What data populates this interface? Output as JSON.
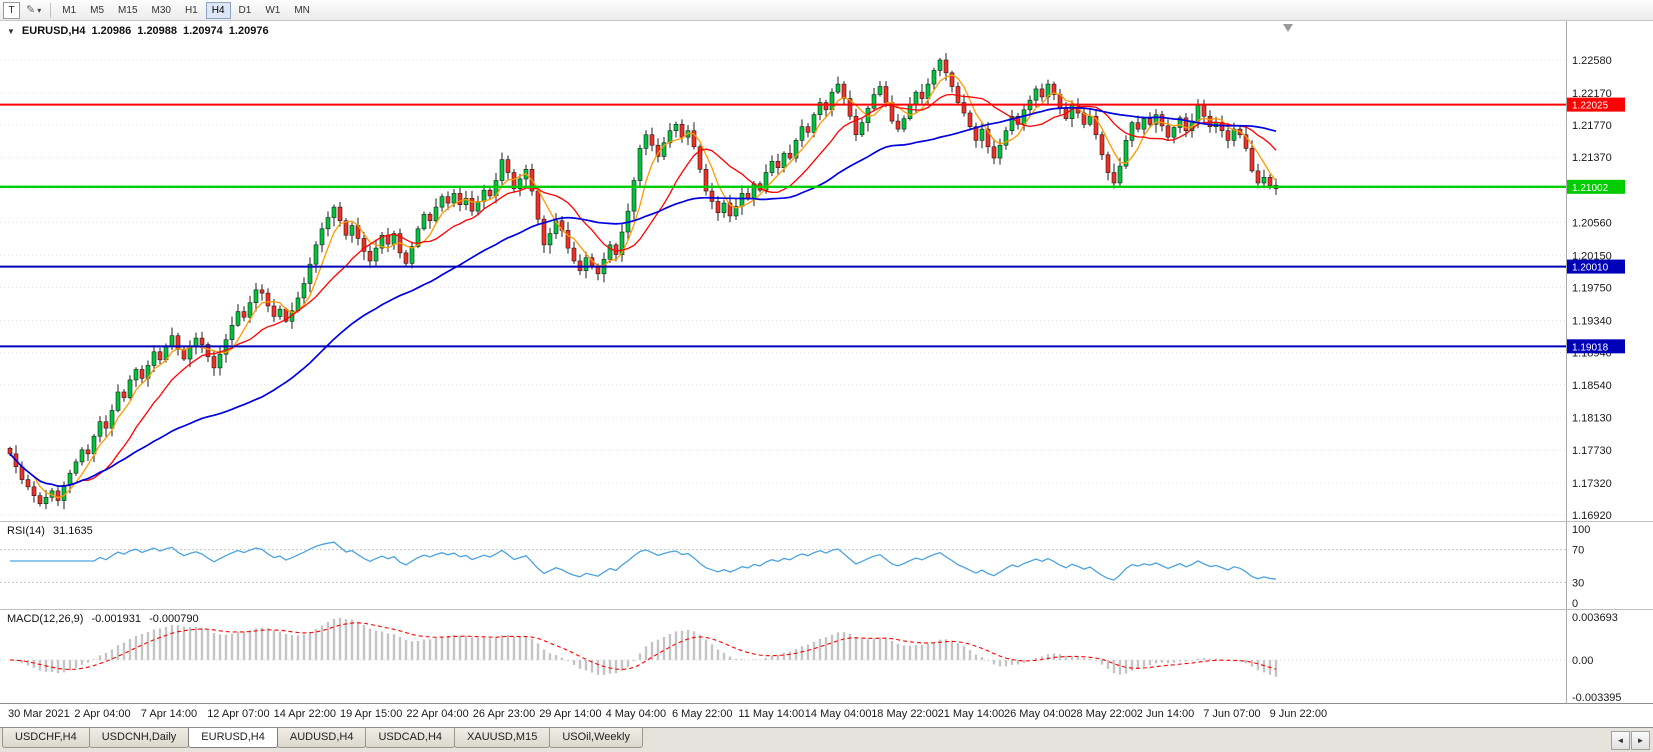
{
  "toolbar": {
    "t_label": "T",
    "tools_glyph": "✎",
    "caret_glyph": "▾",
    "timeframes": [
      "M1",
      "M5",
      "M15",
      "M30",
      "H1",
      "H4",
      "D1",
      "W1",
      "MN"
    ],
    "active_timeframe": "H4"
  },
  "chart": {
    "one_click_glyph": "▼",
    "symbol_label": "EURUSD,H4",
    "open": "1.20986",
    "high": "1.20988",
    "low": "1.20974",
    "close": "1.20976"
  },
  "tabs": {
    "items": [
      "USDCHF,H4",
      "USDCNH,Daily",
      "EURUSD,H4",
      "AUDUSD,H4",
      "USDCAD,H4",
      "XAUUSD,M15",
      "USOil,Weekly"
    ],
    "active": "EURUSD,H4",
    "scroll_left_glyph": "◄",
    "scroll_right_glyph": "►"
  },
  "chart_data": {
    "type": "candlestick",
    "symbol": "EURUSD",
    "period": "H4",
    "ylim": [
      1.1687,
      1.2304
    ],
    "price_ticks": [
      "1.22580",
      "1.22170",
      "1.21770",
      "1.21370",
      "1.20970",
      "1.20560",
      "1.20150",
      "1.19750",
      "1.19340",
      "1.18940",
      "1.18540",
      "1.18130",
      "1.17730",
      "1.17320",
      "1.16920"
    ],
    "time_labels": [
      "30 Mar 2021",
      "2 Apr 04:00",
      "7 Apr 14:00",
      "12 Apr 07:00",
      "14 Apr 22:00",
      "19 Apr 15:00",
      "22 Apr 04:00",
      "26 Apr 23:00",
      "29 Apr 14:00",
      "4 May 04:00",
      "6 May 22:00",
      "11 May 14:00",
      "14 May 04:00",
      "18 May 22:00",
      "21 May 14:00",
      "26 May 04:00",
      "28 May 22:00",
      "2 Jun 14:00",
      "7 Jun 07:00",
      "9 Jun 22:00"
    ],
    "first_open": 1.1775,
    "closes": [
      1.1768,
      1.1752,
      1.1736,
      1.1727,
      1.1716,
      1.1706,
      1.1714,
      1.1722,
      1.171,
      1.1729,
      1.1744,
      1.1758,
      1.1773,
      1.1768,
      1.179,
      1.1808,
      1.18,
      1.1822,
      1.1845,
      1.1838,
      1.186,
      1.1873,
      1.1862,
      1.1878,
      1.1895,
      1.1885,
      1.1902,
      1.1915,
      1.1898,
      1.1886,
      1.1901,
      1.1912,
      1.1904,
      1.1889,
      1.1875,
      1.1892,
      1.191,
      1.1928,
      1.1945,
      1.1938,
      1.1956,
      1.1972,
      1.1968,
      1.1952,
      1.1939,
      1.1948,
      1.1933,
      1.1946,
      1.1962,
      1.198,
      1.2004,
      1.2028,
      1.2048,
      1.2062,
      1.2075,
      1.2058,
      1.204,
      1.2052,
      1.2036,
      1.202,
      1.2008,
      1.2024,
      1.204,
      1.2029,
      1.2042,
      1.2018,
      1.2005,
      1.2026,
      1.2048,
      1.2066,
      1.2058,
      1.2075,
      1.2088,
      1.208,
      1.2092,
      1.2078,
      1.2086,
      1.207,
      1.2082,
      1.2096,
      1.2089,
      1.2108,
      1.2134,
      1.2118,
      1.2098,
      1.211,
      1.2122,
      1.2095,
      1.206,
      1.2028,
      1.2042,
      1.2058,
      1.2046,
      1.2024,
      1.2008,
      1.1996,
      1.2012,
      1.2002,
      1.1992,
      1.201,
      1.2028,
      1.2016,
      1.2044,
      1.207,
      1.2108,
      1.2148,
      1.2165,
      1.2152,
      1.2138,
      1.2155,
      1.217,
      1.2178,
      1.2162,
      1.217,
      1.215,
      1.2122,
      1.2095,
      1.2082,
      1.2068,
      1.208,
      1.2064,
      1.2076,
      1.2092,
      1.2085,
      1.2104,
      1.2096,
      1.2118,
      1.2132,
      1.2124,
      1.2142,
      1.2136,
      1.2158,
      1.2175,
      1.2168,
      1.219,
      1.2205,
      1.2196,
      1.2218,
      1.2228,
      1.221,
      1.2188,
      1.2165,
      1.218,
      1.2198,
      1.2215,
      1.2225,
      1.2205,
      1.2182,
      1.2172,
      1.2185,
      1.2202,
      1.2218,
      1.221,
      1.2228,
      1.2245,
      1.2258,
      1.2242,
      1.2225,
      1.2205,
      1.2192,
      1.2175,
      1.2158,
      1.2172,
      1.215,
      1.2136,
      1.2152,
      1.217,
      1.2188,
      1.2178,
      1.2196,
      1.2208,
      1.2222,
      1.2212,
      1.2228,
      1.2215,
      1.2198,
      1.2185,
      1.2202,
      1.2192,
      1.2178,
      1.2188,
      1.2165,
      1.214,
      1.2118,
      1.2105,
      1.2126,
      1.2158,
      1.218,
      1.2172,
      1.2185,
      1.2178,
      1.219,
      1.2176,
      1.2162,
      1.2174,
      1.2186,
      1.217,
      1.2182,
      1.2202,
      1.2188,
      1.2175,
      1.218,
      1.217,
      1.2158,
      1.2172,
      1.2165,
      1.2148,
      1.212,
      1.2105,
      1.2112,
      1.2102,
      1.2098
    ],
    "candle_up_color": "#00C33C",
    "candle_down_color": "#F02F25",
    "candle_outline_color": "#1E1E1E",
    "ma_lines": [
      {
        "name": "ma-fast-orange",
        "period": 5,
        "color": "#FF9900",
        "width": 1.3
      },
      {
        "name": "ma-mid-red",
        "period": 13,
        "color": "#FF0000",
        "width": 1.3
      },
      {
        "name": "ma-slow-blue",
        "period": 43,
        "color": "#0000E0",
        "width": 1.7
      }
    ],
    "hlines": [
      {
        "label": "1.22025",
        "value": 1.22025,
        "color": "#FF0000",
        "width": 2
      },
      {
        "label": "1.21002",
        "value": 1.21002,
        "color": "#00CC00",
        "width": 2.4
      },
      {
        "label": "1.20010",
        "value": 1.2001,
        "color": "#0000B8",
        "width": 2
      },
      {
        "label": "1.19018",
        "value": 1.19018,
        "color": "#0000B8",
        "width": 2
      }
    ],
    "rsi": {
      "label": "RSI(14)",
      "value": "31.1635",
      "period": 14,
      "levels": [
        100,
        70,
        30,
        0
      ],
      "color": "#4CA3DD"
    },
    "macd": {
      "label": "MACD(12,26,9)",
      "value_main": "-0.001931",
      "value_signal": "-0.000790",
      "fast": 12,
      "slow": 26,
      "signal": 9,
      "scale_labels": [
        "0.003693",
        "0.00",
        "-0.003395"
      ],
      "hist_color": "#C4C4C4",
      "signal_color": "#FF0000"
    }
  }
}
